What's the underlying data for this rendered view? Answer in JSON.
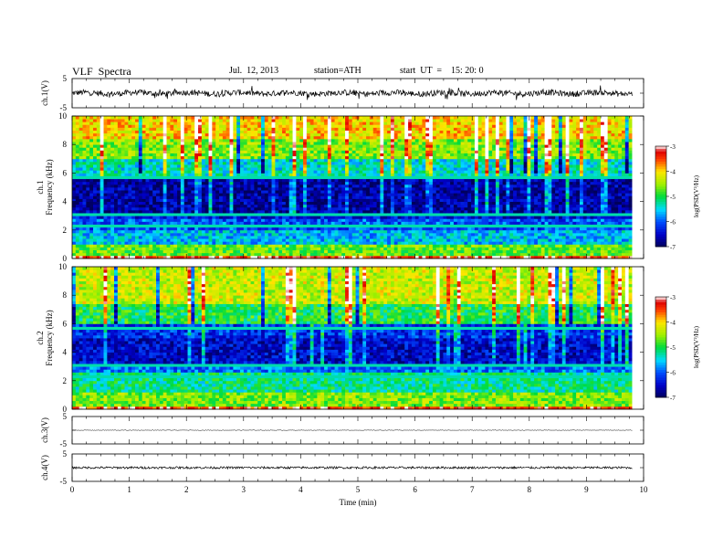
{
  "header": {
    "title": "VLF  Spectra",
    "date": "Jul.  12, 2013",
    "station": "station=ATH",
    "start": "start  UT  =    15: 20: 0"
  },
  "chart_data": [
    {
      "type": "line",
      "panel": "ch1-waveform",
      "ylabel": "ch.1(V)",
      "ylim": [
        -5,
        5
      ],
      "yticks": [
        "5",
        "-5"
      ],
      "xlim": [
        0,
        10
      ],
      "x_data_end": 9.8,
      "baseline": 0,
      "approx_amplitude": 1.0
    },
    {
      "type": "heatmap",
      "panel": "ch1-spectrogram",
      "ylabel": "ch.1\nFrequency  (kHz)",
      "ylabel_lines": [
        "ch.1",
        "Frequency  (kHz)"
      ],
      "ylim": [
        0,
        10
      ],
      "yticks": [
        "0",
        "2",
        "4",
        "6",
        "8",
        "10"
      ],
      "xlim": [
        0,
        10
      ],
      "x_data_end": 9.8,
      "colorbar": {
        "label": "log(PSD(V²/Hz)",
        "range": [
          -7,
          -3
        ],
        "ticks": [
          "-7",
          "-6",
          "-5",
          "-4",
          "-3"
        ]
      },
      "bands_logpsd": [
        {
          "f": [
            0.0,
            0.3
          ],
          "v": -3.3
        },
        {
          "f": [
            0.3,
            1.0
          ],
          "v": -4.7
        },
        {
          "f": [
            1.0,
            2.0
          ],
          "v": -5.6
        },
        {
          "f": [
            2.0,
            2.8
          ],
          "v": -6.0
        },
        {
          "f": [
            2.8,
            3.3
          ],
          "v": -6.4
        },
        {
          "f": [
            3.3,
            5.8
          ],
          "v": -6.7
        },
        {
          "f": [
            5.8,
            7.0
          ],
          "v": -5.4
        },
        {
          "f": [
            7.0,
            8.5
          ],
          "v": -4.6
        },
        {
          "f": [
            8.5,
            10.0
          ],
          "v": -4.0
        }
      ]
    },
    {
      "type": "heatmap",
      "panel": "ch2-spectrogram",
      "ylabel": "ch.2\nFrequency  (kHz)",
      "ylabel_lines": [
        "ch.2",
        "Frequency  (kHz)"
      ],
      "ylim": [
        0,
        10
      ],
      "yticks": [
        "0",
        "2",
        "4",
        "6",
        "8",
        "10"
      ],
      "xlim": [
        0,
        10
      ],
      "x_data_end": 9.8,
      "colorbar": {
        "label": "log(PSD(V²/Hz)",
        "range": [
          -7,
          -3
        ],
        "ticks": [
          "-7",
          "-6",
          "-5",
          "-4",
          "-3"
        ]
      },
      "bands_logpsd": [
        {
          "f": [
            0.0,
            0.3
          ],
          "v": -3.4
        },
        {
          "f": [
            0.3,
            1.2
          ],
          "v": -4.6
        },
        {
          "f": [
            1.2,
            2.6
          ],
          "v": -5.2
        },
        {
          "f": [
            2.6,
            3.2
          ],
          "v": -5.9
        },
        {
          "f": [
            3.2,
            5.0
          ],
          "v": -6.5
        },
        {
          "f": [
            5.0,
            6.0
          ],
          "v": -6.2
        },
        {
          "f": [
            6.0,
            7.5
          ],
          "v": -5.0
        },
        {
          "f": [
            7.5,
            10.0
          ],
          "v": -4.3
        }
      ]
    },
    {
      "type": "line",
      "panel": "ch3-waveform",
      "ylabel": "ch.3(V)",
      "ylim": [
        -5,
        5
      ],
      "yticks": [
        "5",
        "-5"
      ],
      "xlim": [
        0,
        10
      ],
      "x_data_end": 9.8,
      "baseline": 0,
      "approx_amplitude": 0.1
    },
    {
      "type": "line",
      "panel": "ch4-waveform",
      "ylabel": "ch.4(V)",
      "ylim": [
        -5,
        5
      ],
      "yticks": [
        "5",
        "-5"
      ],
      "xlim": [
        0,
        10
      ],
      "x_data_end": 9.8,
      "baseline": 0,
      "approx_amplitude": 0.4,
      "xlabel": "Time  (min)",
      "xticks": [
        "0",
        "1",
        "2",
        "3",
        "4",
        "5",
        "6",
        "7",
        "8",
        "9",
        "10"
      ]
    }
  ]
}
